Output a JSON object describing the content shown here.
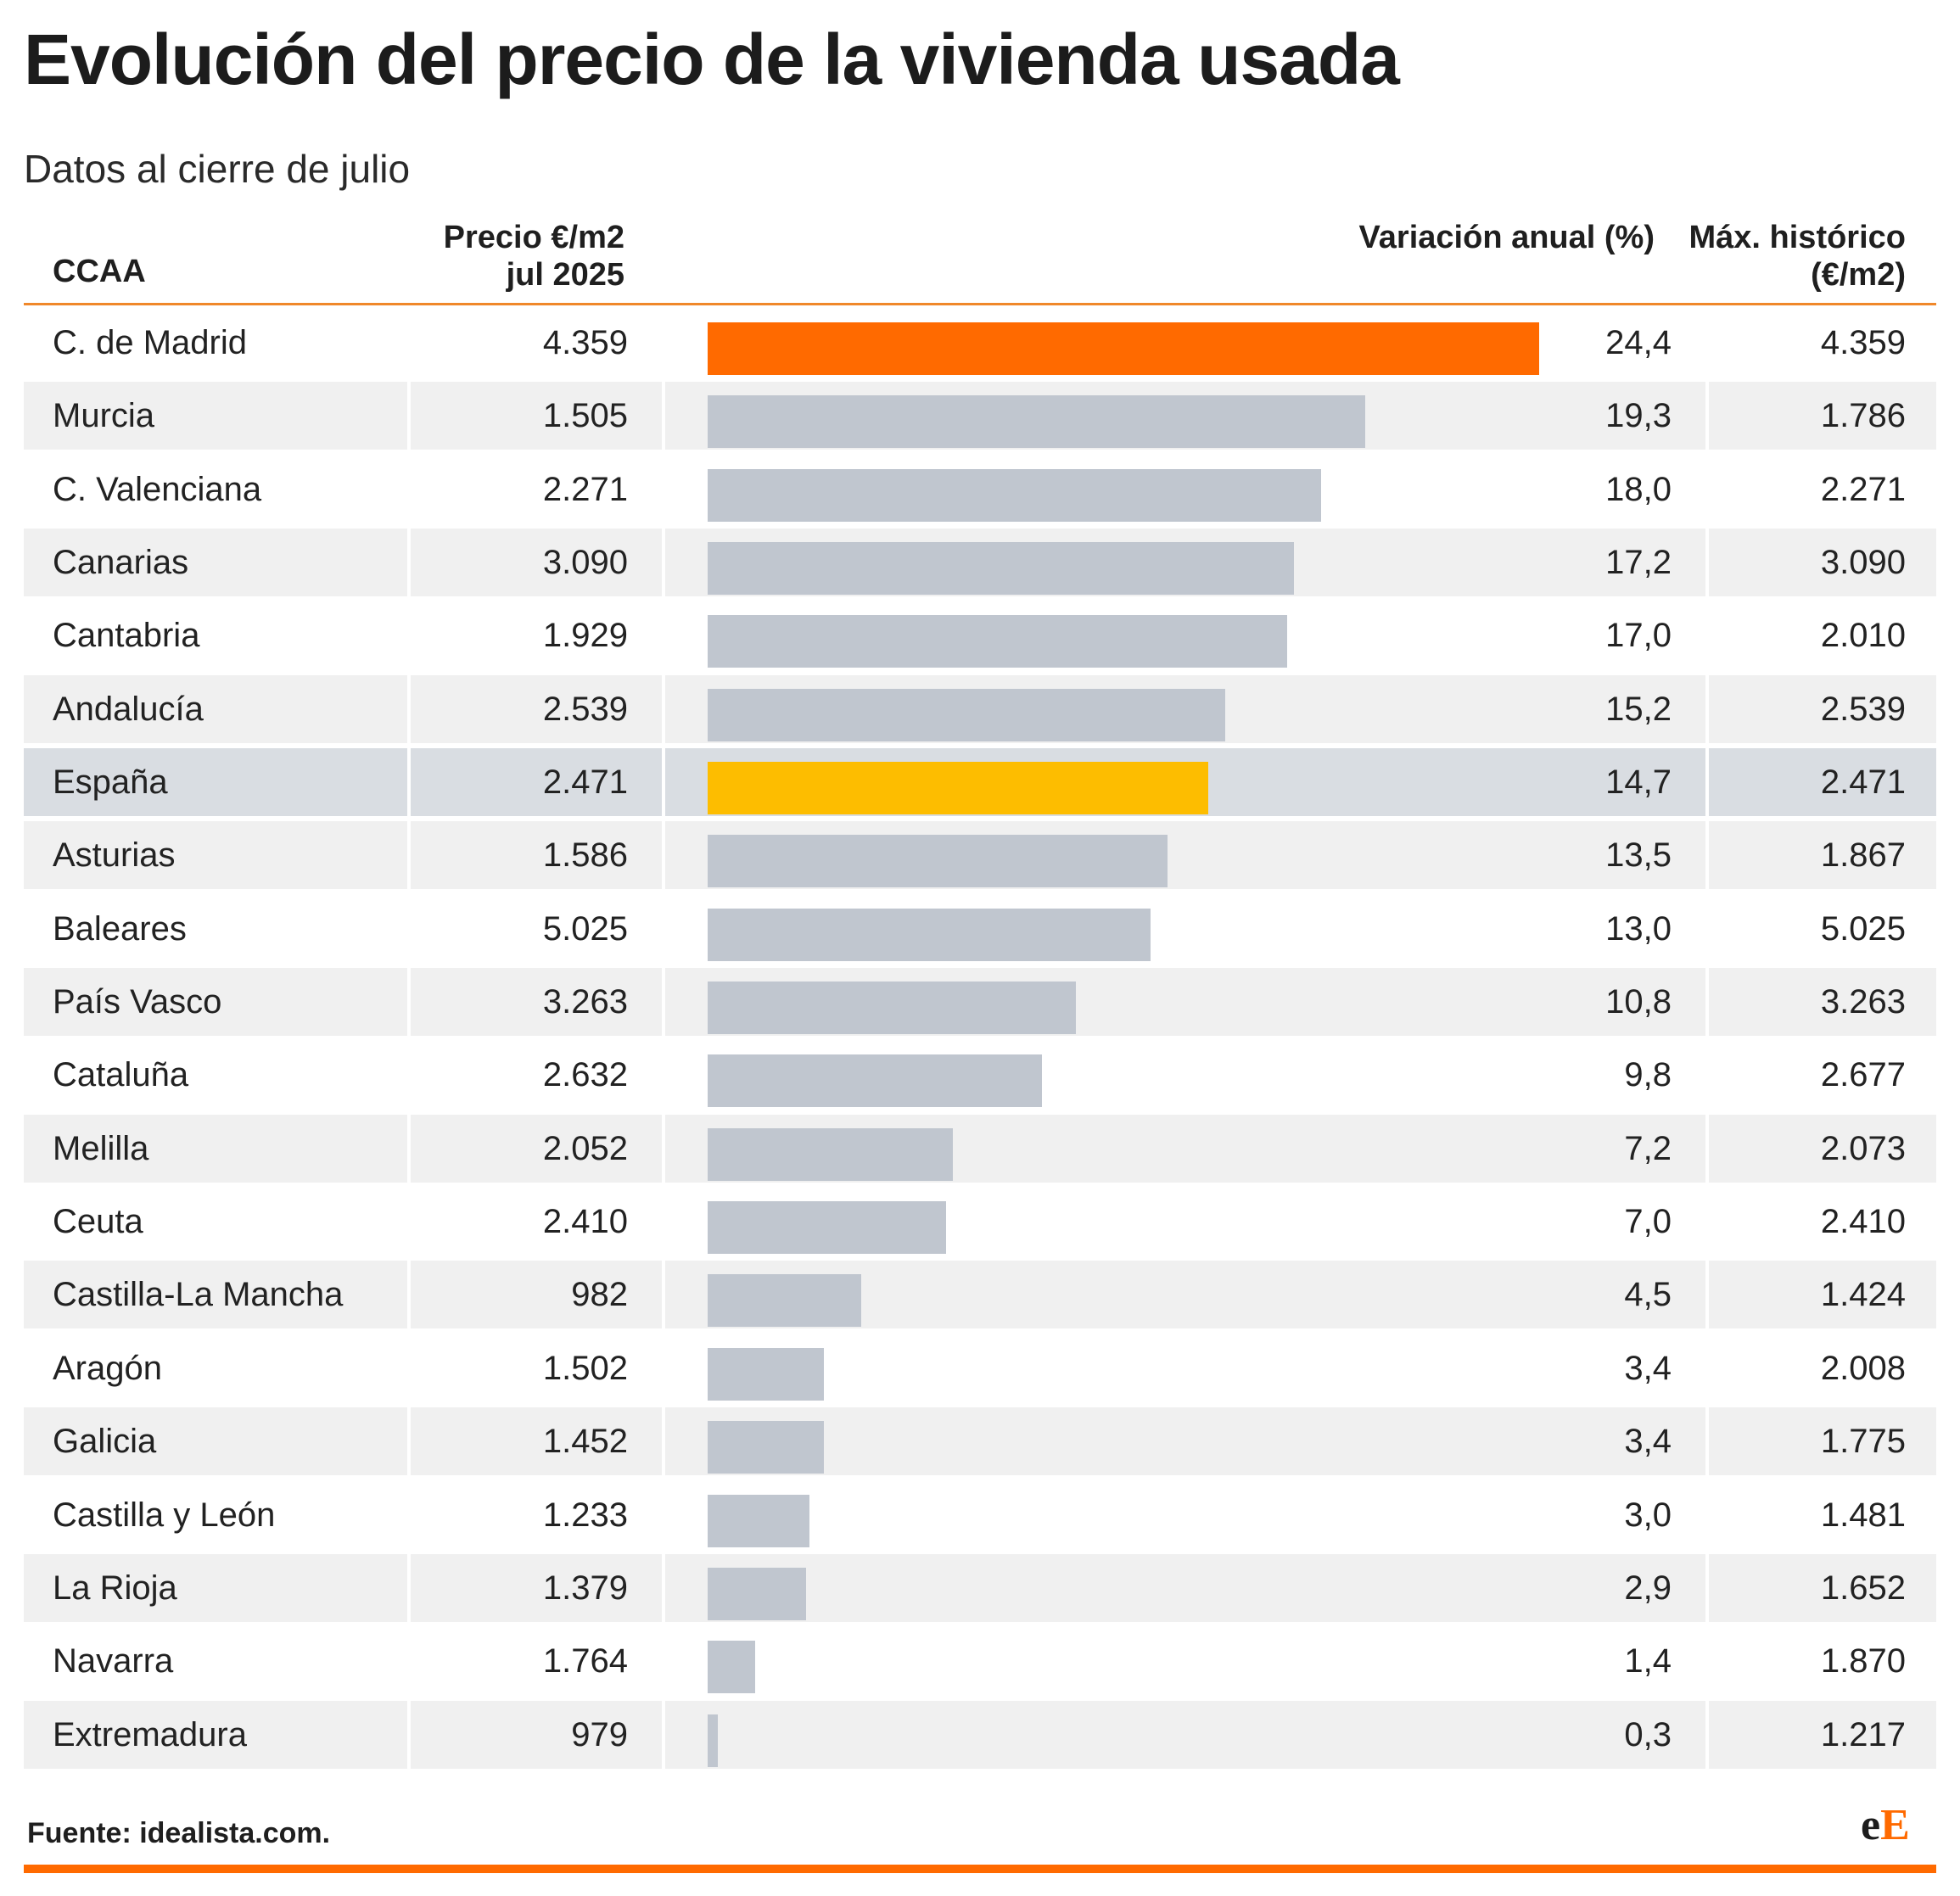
{
  "chart_data": {
    "type": "bar",
    "orientation": "horizontal",
    "title": "Evolución del precio de la vivienda usada",
    "subtitle": "Datos al cierre de julio",
    "columns": {
      "region": "CCAA",
      "price_line1": "Precio €/m2",
      "price_line2": "jul 2025",
      "variation": "Variación anual (%)",
      "max_line1": "Máx. histórico",
      "max_line2": "(€/m2)"
    },
    "xlim": [
      0,
      24.4
    ],
    "colors": {
      "default": "#c0c6cf",
      "top": "#ff6a00",
      "spain": "#fdbd00"
    },
    "rows": [
      {
        "region": "C. de Madrid",
        "price": "4.359",
        "variation": 24.4,
        "variation_label": "24,4",
        "max": "4.359",
        "color": "#ff6a00"
      },
      {
        "region": "Murcia",
        "price": "1.505",
        "variation": 19.3,
        "variation_label": "19,3",
        "max": "1.786"
      },
      {
        "region": "C. Valenciana",
        "price": "2.271",
        "variation": 18.0,
        "variation_label": "18,0",
        "max": "2.271"
      },
      {
        "region": "Canarias",
        "price": "3.090",
        "variation": 17.2,
        "variation_label": "17,2",
        "max": "3.090"
      },
      {
        "region": "Cantabria",
        "price": "1.929",
        "variation": 17.0,
        "variation_label": "17,0",
        "max": "2.010"
      },
      {
        "region": "Andalucía",
        "price": "2.539",
        "variation": 15.2,
        "variation_label": "15,2",
        "max": "2.539"
      },
      {
        "region": "España",
        "price": "2.471",
        "variation": 14.7,
        "variation_label": "14,7",
        "max": "2.471",
        "color": "#fdbd00",
        "highlight": true
      },
      {
        "region": "Asturias",
        "price": "1.586",
        "variation": 13.5,
        "variation_label": "13,5",
        "max": "1.867"
      },
      {
        "region": "Baleares",
        "price": "5.025",
        "variation": 13.0,
        "variation_label": "13,0",
        "max": "5.025"
      },
      {
        "region": "País Vasco",
        "price": "3.263",
        "variation": 10.8,
        "variation_label": "10,8",
        "max": "3.263"
      },
      {
        "region": "Cataluña",
        "price": "2.632",
        "variation": 9.8,
        "variation_label": "9,8",
        "max": "2.677"
      },
      {
        "region": "Melilla",
        "price": "2.052",
        "variation": 7.2,
        "variation_label": "7,2",
        "max": "2.073"
      },
      {
        "region": "Ceuta",
        "price": "2.410",
        "variation": 7.0,
        "variation_label": "7,0",
        "max": "2.410"
      },
      {
        "region": "Castilla-La Mancha",
        "price": "982",
        "variation": 4.5,
        "variation_label": "4,5",
        "max": "1.424"
      },
      {
        "region": "Aragón",
        "price": "1.502",
        "variation": 3.4,
        "variation_label": "3,4",
        "max": "2.008"
      },
      {
        "region": "Galicia",
        "price": "1.452",
        "variation": 3.4,
        "variation_label": "3,4",
        "max": "1.775"
      },
      {
        "region": "Castilla y León",
        "price": "1.233",
        "variation": 3.0,
        "variation_label": "3,0",
        "max": "1.481"
      },
      {
        "region": "La Rioja",
        "price": "1.379",
        "variation": 2.9,
        "variation_label": "2,9",
        "max": "1.652"
      },
      {
        "region": "Navarra",
        "price": "1.764",
        "variation": 1.4,
        "variation_label": "1,4",
        "max": "1.870"
      },
      {
        "region": "Extremadura",
        "price": "979",
        "variation": 0.3,
        "variation_label": "0,3",
        "max": "1.217"
      }
    ],
    "source": "Fuente: idealista.com."
  },
  "brand": {
    "part1": "e",
    "part2": "E"
  }
}
